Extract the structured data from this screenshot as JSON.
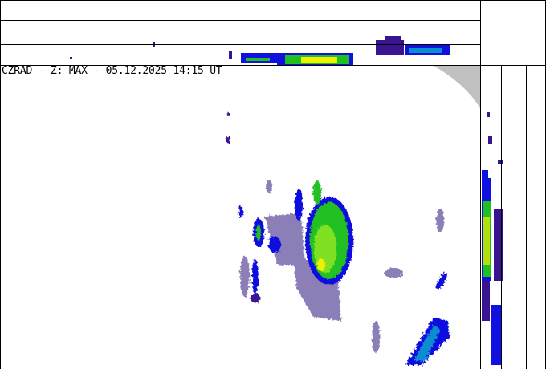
{
  "title": "CZRAD - Z: MAX - 05.12.2025 14:15 UT",
  "product": "MAX",
  "colors": {
    "weak": "#8c7fb8",
    "light": "#3a1490",
    "blue": "#1010e0",
    "teal": "#0a8cd0",
    "green": "#20c020",
    "lightgreen": "#80e020",
    "yellow": "#f0f000",
    "orange": "#f0a000",
    "outside_range": "#c0c0c0"
  }
}
